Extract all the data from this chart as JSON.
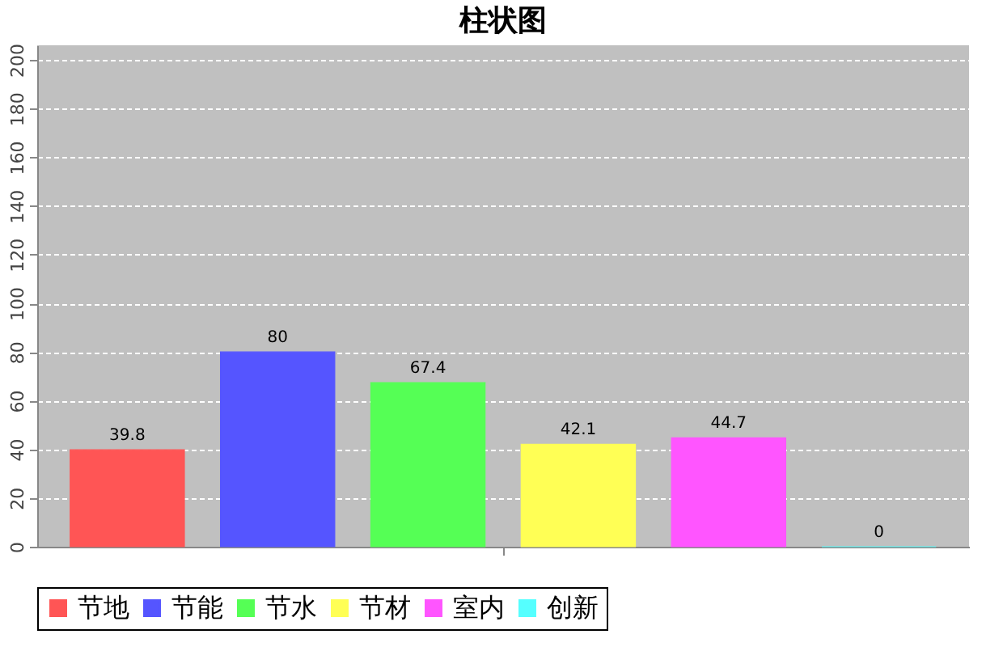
{
  "chart_data": {
    "type": "bar",
    "title": "柱状图",
    "categories": [
      null
    ],
    "series": [
      {
        "name": "节地",
        "color": "#ff5555",
        "values": [
          39.8
        ]
      },
      {
        "name": "节能",
        "color": "#5555ff",
        "values": [
          80
        ]
      },
      {
        "name": "节水",
        "color": "#55ff55",
        "values": [
          67.4
        ]
      },
      {
        "name": "节材",
        "color": "#ffff55",
        "values": [
          42.1
        ]
      },
      {
        "name": "室内",
        "color": "#ff55ff",
        "values": [
          44.7
        ]
      },
      {
        "name": "创新",
        "color": "#55ffff",
        "values": [
          0
        ]
      }
    ],
    "ylim": [
      0,
      206
    ],
    "yticks": [
      0,
      20,
      40,
      60,
      80,
      100,
      120,
      140,
      160,
      180,
      200
    ],
    "grid": "y",
    "legend": "bottom",
    "data_labels": true
  }
}
